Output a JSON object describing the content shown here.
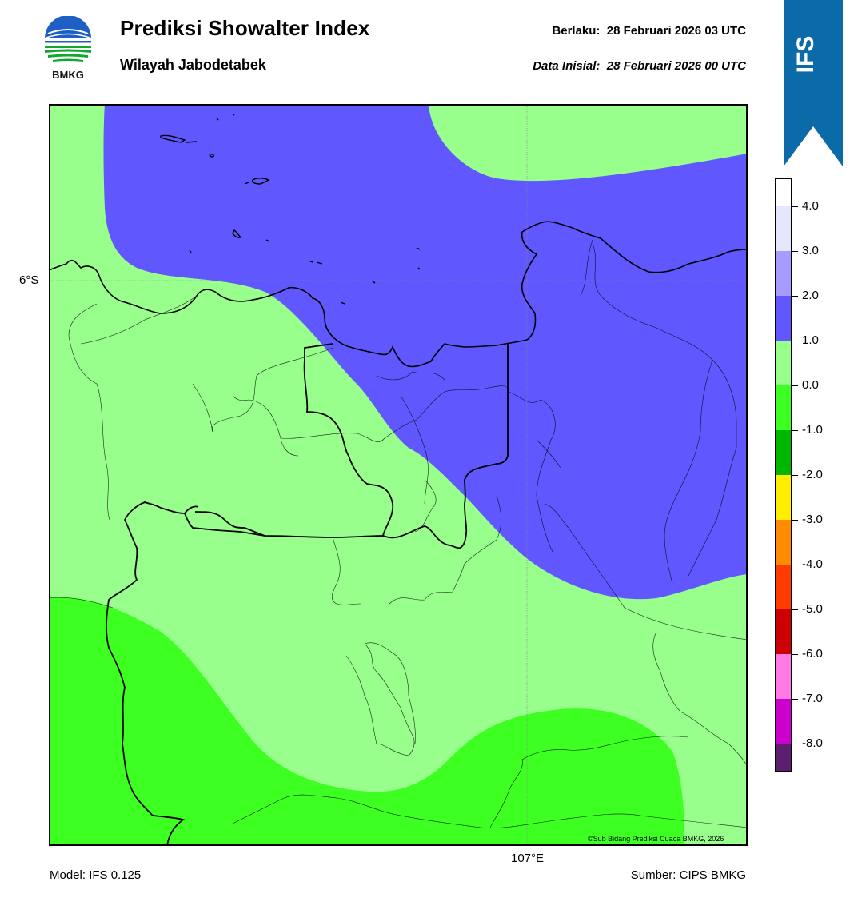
{
  "header": {
    "logo_text": "BMKG",
    "title": "Prediksi Showalter Index",
    "subtitle": "Wilayah Jabodetabek",
    "valid_time": "Berlaku:  28 Februari 2026 03 UTC",
    "init_time": "Data Inisial:  28 Februari 2026 00 UTC",
    "ribbon_label": "IFS"
  },
  "map": {
    "lat_label": "6°S",
    "lon_label": "107°E",
    "credit": "©Sub Bidang Prediksi Cuaca BMKG, 2026",
    "fill_colors": {
      "band_1_to_2": "#6157ff",
      "band_0_to_1": "#98ff8c",
      "band_-1_to_0": "#3dff22"
    }
  },
  "colorbar": {
    "labels": [
      "4.0",
      "3.0",
      "2.0",
      "1.0",
      "0.0",
      "-1.0",
      "-2.0",
      "-3.0",
      "-4.0",
      "-5.0",
      "-6.0",
      "-7.0",
      "-8.0"
    ],
    "colors": [
      "#ffffff",
      "#e6e6ff",
      "#a89bff",
      "#6157ff",
      "#98ff8c",
      "#3dff22",
      "#00b700",
      "#ffee00",
      "#ff8c00",
      "#ff3c00",
      "#cc0000",
      "#ff7ae5",
      "#cc00cc",
      "#5c1e6e"
    ]
  },
  "footer": {
    "model": "Model: IFS 0.125",
    "source": "Sumber: CIPS BMKG"
  }
}
